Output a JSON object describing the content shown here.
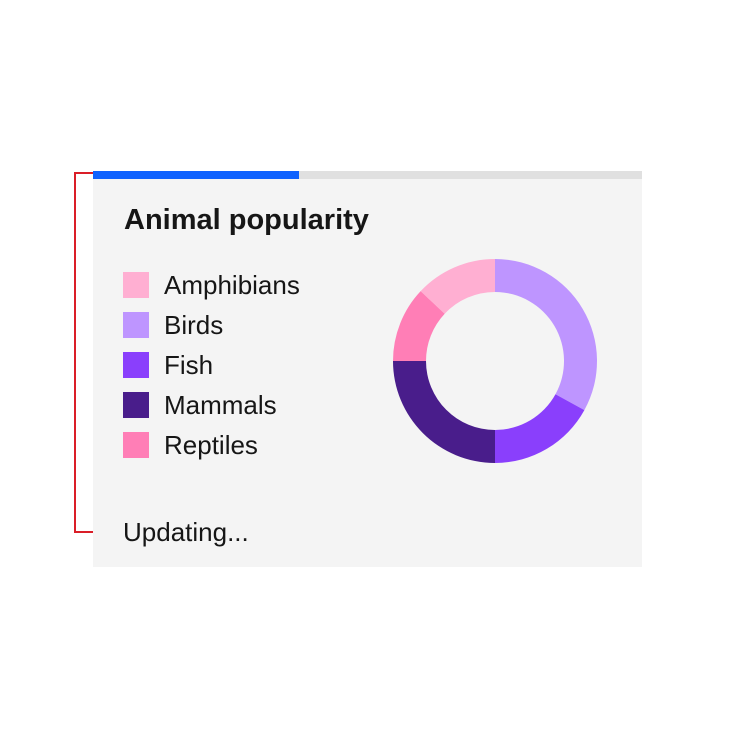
{
  "header": {
    "title": "Animal popularity"
  },
  "loading_bar": {
    "progress_percent": 37.5,
    "fill_color": "#0f62fe",
    "track_color": "#e0e0e0"
  },
  "annotation": {
    "color": "#da1e28"
  },
  "card": {
    "background": "#f4f4f4"
  },
  "legend": {
    "items": [
      {
        "label": "Amphibians",
        "color": "#ffafd2"
      },
      {
        "label": "Birds",
        "color": "#be95ff"
      },
      {
        "label": "Fish",
        "color": "#8a3ffc"
      },
      {
        "label": "Mammals",
        "color": "#491d8b"
      },
      {
        "label": "Reptiles",
        "color": "#ff7eb6"
      }
    ]
  },
  "status": {
    "label": "Updating..."
  },
  "chart_data": {
    "type": "pie",
    "subtype": "donut",
    "title": "Animal popularity",
    "legend_position": "left",
    "start_angle_deg": 0,
    "direction": "clockwise",
    "outer_radius": 102,
    "inner_radius": 69,
    "series": [
      {
        "name": "Birds",
        "percent": 33,
        "color": "#be95ff"
      },
      {
        "name": "Fish",
        "percent": 17,
        "color": "#8a3ffc"
      },
      {
        "name": "Mammals",
        "percent": 25,
        "color": "#491d8b"
      },
      {
        "name": "Reptiles",
        "percent": 12,
        "color": "#ff7eb6"
      },
      {
        "name": "Amphibians",
        "percent": 13,
        "color": "#ffafd2"
      }
    ]
  }
}
